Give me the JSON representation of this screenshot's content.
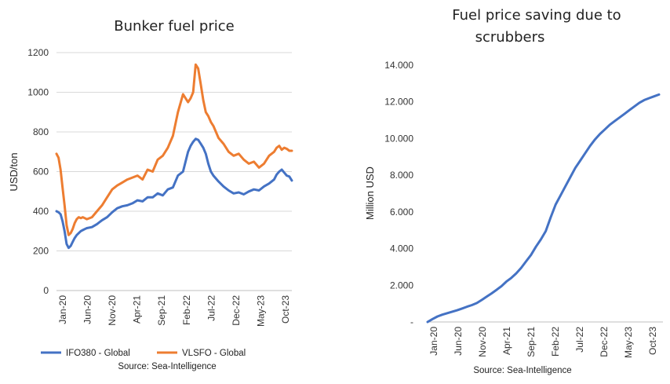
{
  "colors": {
    "ifo": "#4472C4",
    "vlsfo": "#ED7D31",
    "saving": "#4472C4",
    "grid": "#d9d9d9"
  },
  "chart_data": [
    {
      "type": "line",
      "title": "Bunker fuel price",
      "xlabel": "",
      "ylabel": "USD/ton",
      "ylim": [
        0,
        1200
      ],
      "yticks": [
        "0",
        "200",
        "400",
        "600",
        "800",
        "1000",
        "1200"
      ],
      "x_categories": [
        "Jan-20",
        "Jun-20",
        "Nov-20",
        "Apr-21",
        "Sep-21",
        "Feb-22",
        "Jul-22",
        "Dec-22",
        "May-23",
        "Oct-23"
      ],
      "grid": true,
      "legend_position": "bottom",
      "source": "Source: Sea-Intelligence",
      "series": [
        {
          "name": "IFO380 - Global",
          "color": "#4472C4",
          "x": [
            0,
            0.4,
            0.8,
            1.2,
            1.6,
            2.0,
            2.4,
            2.8,
            3.2,
            3.6,
            4.0,
            4.4,
            4.8,
            5.2,
            5.6,
            6.0,
            7.0,
            8.0,
            9.0,
            10,
            11,
            12,
            13,
            14,
            15,
            16,
            17,
            18,
            19,
            20,
            21,
            22,
            23,
            24,
            25,
            26,
            26.5,
            27,
            27.5,
            28,
            28.5,
            29,
            29.5,
            30,
            30.5,
            31,
            32,
            33,
            34,
            35,
            36,
            37,
            38,
            39,
            40,
            41,
            42,
            43,
            43.5,
            44,
            44.5,
            45,
            45.5,
            46,
            46.5
          ],
          "values": [
            400,
            395,
            385,
            350,
            300,
            235,
            215,
            225,
            245,
            265,
            280,
            290,
            300,
            305,
            310,
            315,
            320,
            335,
            355,
            370,
            395,
            415,
            425,
            430,
            440,
            455,
            450,
            470,
            470,
            490,
            480,
            510,
            520,
            580,
            600,
            700,
            730,
            750,
            765,
            760,
            740,
            720,
            690,
            640,
            600,
            580,
            550,
            525,
            505,
            490,
            495,
            485,
            500,
            510,
            505,
            525,
            540,
            560,
            585,
            600,
            610,
            595,
            580,
            575,
            555
          ]
        },
        {
          "name": "VLSFO - Global",
          "color": "#ED7D31",
          "x": [
            0,
            0.4,
            0.8,
            1.2,
            1.6,
            2.0,
            2.4,
            2.8,
            3.2,
            3.6,
            4.0,
            4.4,
            4.8,
            5.2,
            5.6,
            6.0,
            7.0,
            8.0,
            9.0,
            10,
            11,
            12,
            13,
            14,
            15,
            16,
            17,
            18,
            19,
            20,
            21,
            22,
            23,
            24,
            25,
            26,
            26.5,
            27,
            27.5,
            28,
            28.5,
            29,
            29.5,
            30,
            30.5,
            31,
            32,
            33,
            34,
            35,
            36,
            37,
            38,
            39,
            40,
            41,
            42,
            43,
            43.5,
            44,
            44.5,
            45,
            45.5,
            46,
            46.5
          ],
          "values": [
            690,
            670,
            610,
            520,
            430,
            330,
            280,
            290,
            310,
            340,
            360,
            370,
            365,
            370,
            365,
            360,
            370,
            400,
            430,
            470,
            510,
            530,
            545,
            560,
            570,
            580,
            560,
            610,
            600,
            660,
            680,
            720,
            780,
            900,
            990,
            950,
            970,
            1000,
            1140,
            1120,
            1040,
            960,
            900,
            880,
            850,
            830,
            770,
            740,
            700,
            680,
            690,
            660,
            640,
            650,
            620,
            640,
            680,
            700,
            720,
            730,
            710,
            720,
            715,
            705,
            705
          ]
        }
      ]
    },
    {
      "type": "line",
      "title": "Fuel price saving due to scrubbers",
      "xlabel": "",
      "ylabel": "Million USD",
      "ylim": [
        0,
        14000
      ],
      "yticks": [
        "-",
        "2.000",
        "4.000",
        "6.000",
        "8.000",
        "10.000",
        "12.000",
        "14.000"
      ],
      "x_categories": [
        "Jan-20",
        "Jun-20",
        "Nov-20",
        "Apr-21",
        "Sep-21",
        "Feb-22",
        "Jul-22",
        "Dec-22",
        "May-23",
        "Oct-23"
      ],
      "grid": false,
      "source": "Source: Sea-Intelligence",
      "series": [
        {
          "color": "#4472C4",
          "x": [
            0,
            1,
            2,
            3,
            4,
            5,
            6,
            7,
            8,
            9,
            10,
            11,
            12,
            13,
            14,
            15,
            16,
            17,
            18,
            19,
            20,
            21,
            22,
            23,
            24,
            25,
            26,
            27,
            28,
            29,
            30,
            31,
            32,
            33,
            34,
            35,
            36,
            37,
            38,
            39,
            40,
            41,
            42,
            43,
            44,
            45,
            46,
            47
          ],
          "values": [
            0,
            160,
            300,
            400,
            480,
            560,
            640,
            730,
            830,
            920,
            1030,
            1200,
            1380,
            1560,
            1750,
            1950,
            2200,
            2400,
            2650,
            2950,
            3300,
            3650,
            4100,
            4500,
            4950,
            5700,
            6400,
            6900,
            7400,
            7900,
            8400,
            8800,
            9200,
            9600,
            9950,
            10250,
            10500,
            10750,
            10950,
            11150,
            11350,
            11550,
            11750,
            11950,
            12100,
            12200,
            12300,
            12400
          ]
        }
      ]
    }
  ]
}
